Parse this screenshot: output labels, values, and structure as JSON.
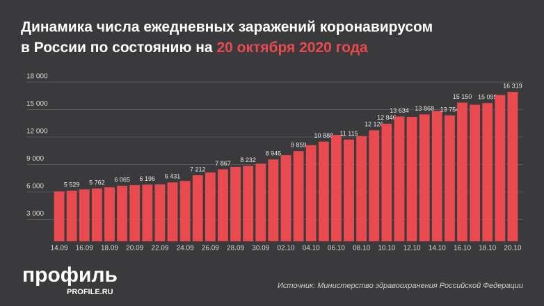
{
  "chart_data": {
    "type": "bar",
    "title": [
      "Динамика числа ежедневных заражений коронавирусом",
      "в России по состоянию на"
    ],
    "title_highlight": "20 октября 2020 года",
    "logo": "профиль",
    "logo_sub": "PROFILE.RU",
    "source": "Источник: Министерство здравоохранения Российской Федерации",
    "categories": [
      "14.09",
      null,
      "16.09",
      null,
      "18.09",
      null,
      "20.09",
      null,
      "22.09",
      null,
      "24.09",
      null,
      "26.09",
      null,
      "28.09",
      null,
      "30.09",
      null,
      "02.10",
      null,
      "04.10",
      null,
      "06.10",
      null,
      "08.10",
      null,
      "10.10",
      null,
      "12.10",
      null,
      "14.10",
      null,
      "16.10",
      null,
      "18.10",
      null,
      "20.10"
    ],
    "values": [
      5449,
      5529,
      5670,
      5762,
      5905,
      6065,
      6148,
      6196,
      6215,
      6431,
      6595,
      7212,
      7523,
      7867,
      8135,
      8232,
      8481,
      8945,
      9412,
      9859,
      10499,
      10888,
      11615,
      11115,
      11493,
      12126,
      12846,
      13634,
      13592,
      13868,
      14231,
      13754,
      15150,
      14919,
      15099,
      15982,
      16319
    ],
    "value_labels": [
      null,
      "5 529",
      null,
      "5 762",
      null,
      "6 065",
      null,
      "6 196",
      null,
      "6 431",
      null,
      "7 212",
      null,
      "7 867",
      null,
      "8 232",
      null,
      "8 945",
      null,
      "9 859",
      null,
      "10 888",
      null,
      "11 115",
      null,
      "12 126",
      "12 846",
      "13 634",
      null,
      "13 868",
      null,
      "13 754",
      "15 150",
      null,
      "15 099",
      null,
      "16 319"
    ],
    "color": "#e84a50",
    "ylim": [
      0,
      18000
    ],
    "yticks": [
      {
        "value": 3000,
        "label": "3 000"
      },
      {
        "value": 6000,
        "label": "6 000"
      },
      {
        "value": 9000,
        "label": "9 000"
      },
      {
        "value": 12000,
        "label": "12 000"
      },
      {
        "value": 15000,
        "label": "15 000"
      },
      {
        "value": 18000,
        "label": "18 000"
      }
    ],
    "grid": true
  }
}
